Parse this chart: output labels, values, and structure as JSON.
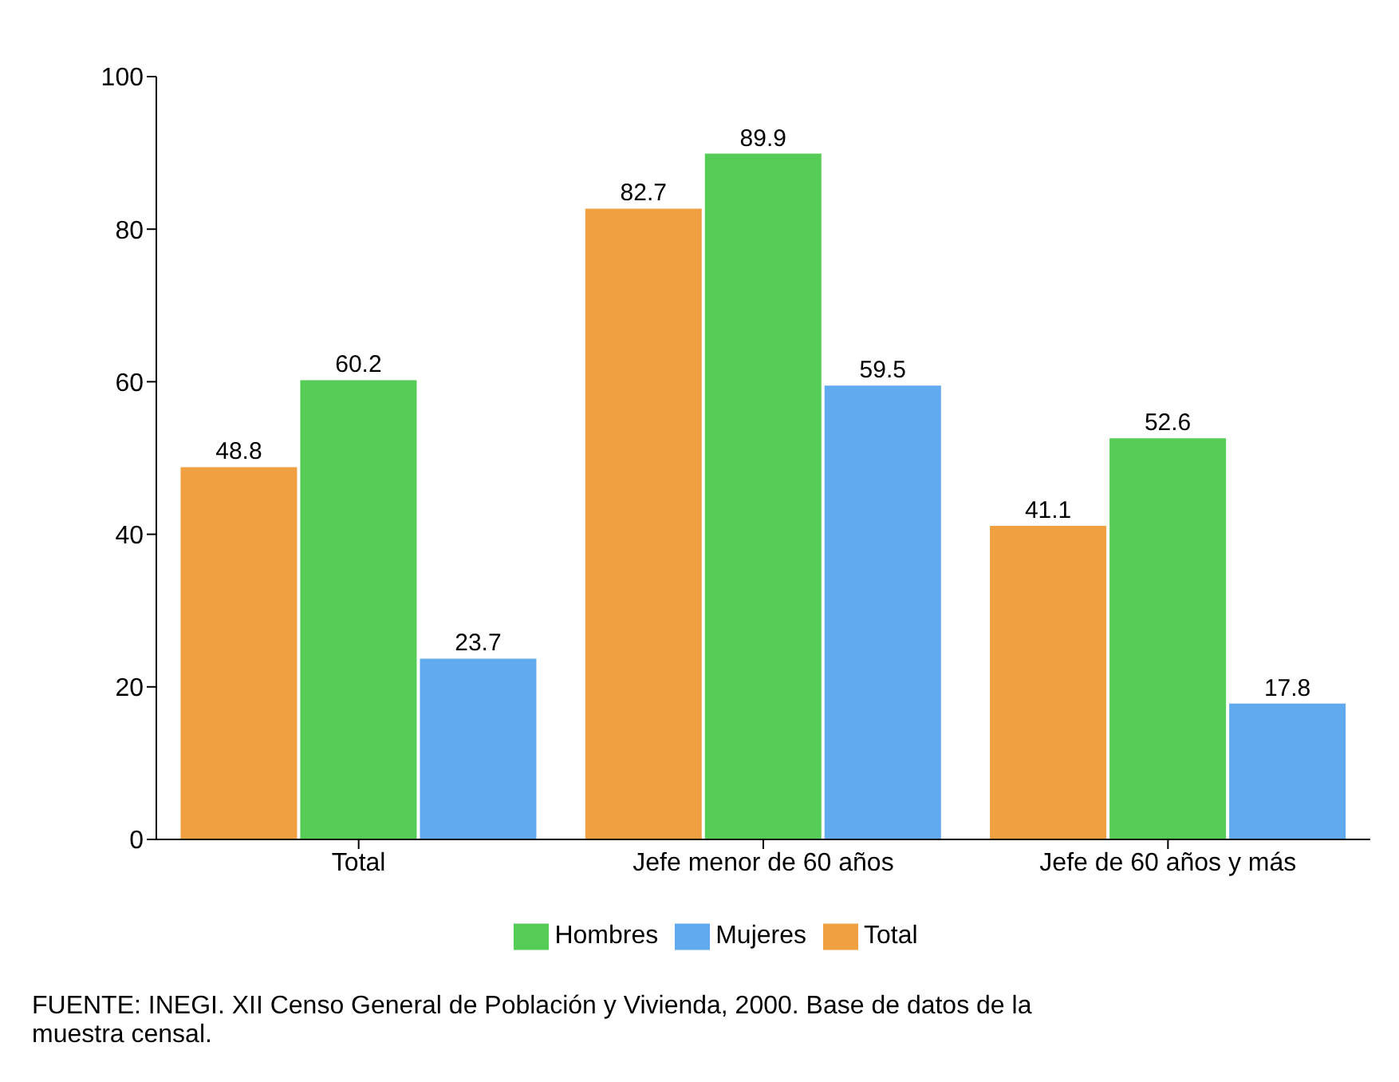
{
  "chart_data": {
    "type": "bar",
    "categories": [
      "Total",
      "Jefe menor de 60 años",
      "Jefe de 60 años y más"
    ],
    "series": [
      {
        "name": "Total",
        "color": "#f0a040",
        "values": [
          48.8,
          82.7,
          41.1
        ]
      },
      {
        "name": "Hombres",
        "color": "#55cc55",
        "values": [
          60.2,
          89.9,
          52.6
        ]
      },
      {
        "name": "Mujeres",
        "color": "#62aaf0",
        "values": [
          23.7,
          59.5,
          17.8
        ]
      }
    ],
    "ylim": [
      0,
      100
    ],
    "yticks": [
      0,
      20,
      40,
      60,
      80,
      100
    ],
    "grid": false,
    "legend": "bottom",
    "data_labels": true,
    "annotations": [
      "FUENTE: INEGI. XII Censo General de Población y Vivienda, 2000. Base de datos de la muestra censal."
    ]
  }
}
